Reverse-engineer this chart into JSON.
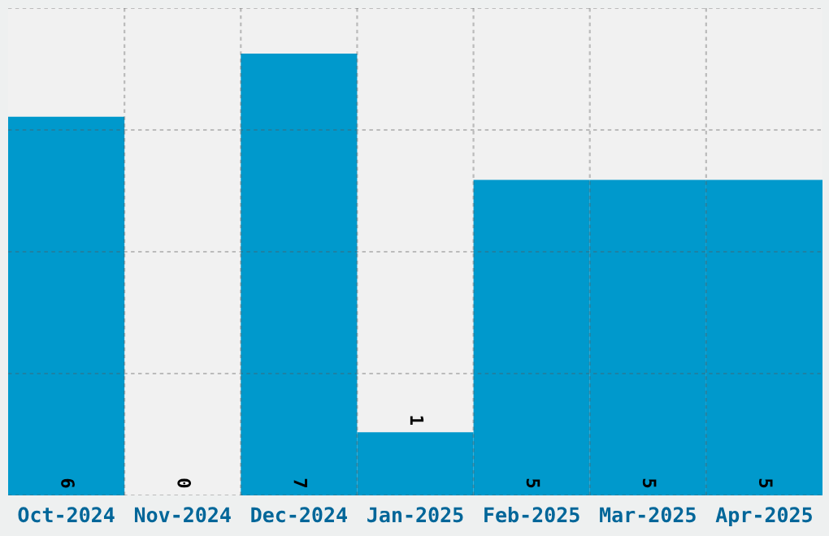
{
  "chart_data": {
    "type": "bar",
    "categories": [
      "Oct-2024",
      "Nov-2024",
      "Dec-2024",
      "Jan-2025",
      "Feb-2025",
      "Mar-2025",
      "Apr-2025"
    ],
    "values": [
      6,
      0,
      7,
      1,
      5,
      5,
      5
    ],
    "color": "#0099cc",
    "data_labels": true,
    "grid": true,
    "tick_labels": "x",
    "ylim": [
      0,
      7.72
    ],
    "yticks": [
      {
        "value": 0,
        "label": null
      },
      {
        "value": 1.93,
        "label": null
      },
      {
        "value": 3.86,
        "label": null
      },
      {
        "value": 5.79,
        "label": null
      },
      {
        "value": 7.72,
        "label": null
      }
    ]
  }
}
